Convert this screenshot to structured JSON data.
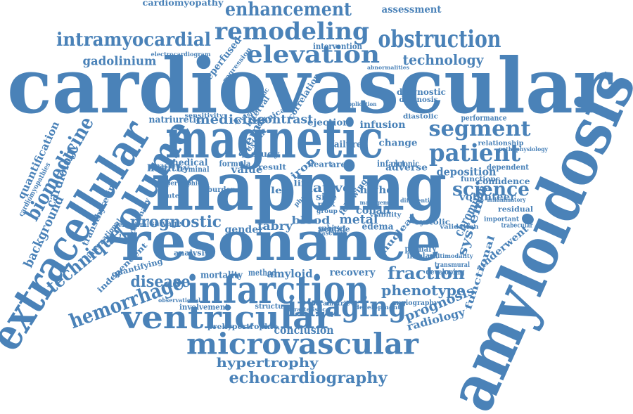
{
  "colors": {
    "word": "#4a82b8",
    "background": "#ffffff"
  },
  "words": [
    {
      "text": "cardiovascular"
    },
    {
      "text": "mapping"
    },
    {
      "text": "resonance"
    },
    {
      "text": "magnetic"
    },
    {
      "text": "amyloidosis"
    },
    {
      "text": "extracellular"
    },
    {
      "text": "infarction"
    },
    {
      "text": "ventricular"
    },
    {
      "text": "microvascular"
    },
    {
      "text": "imaging"
    },
    {
      "text": "volume"
    },
    {
      "text": "remodeling"
    },
    {
      "text": "obstruction"
    },
    {
      "text": "elevation"
    },
    {
      "text": "patient"
    },
    {
      "text": "segment"
    },
    {
      "text": "enhancement"
    },
    {
      "text": "intramyocardial"
    },
    {
      "text": "biomedicine"
    },
    {
      "text": "hemorrhage"
    },
    {
      "text": "technique"
    },
    {
      "text": "science"
    },
    {
      "text": "fraction"
    },
    {
      "text": "echocardiography"
    },
    {
      "text": "disease"
    },
    {
      "text": "prognostic"
    },
    {
      "text": "technology"
    },
    {
      "text": "gadolinium"
    },
    {
      "text": "phenotype"
    },
    {
      "text": "hypertrophy"
    },
    {
      "text": "prognosis"
    },
    {
      "text": "background"
    },
    {
      "text": "cardiology"
    },
    {
      "text": "quantification"
    },
    {
      "text": "chromium"
    },
    {
      "text": "radiology"
    },
    {
      "text": "medicine"
    },
    {
      "text": "contrast"
    },
    {
      "text": "deposition"
    },
    {
      "text": "system"
    },
    {
      "text": "conclusion"
    },
    {
      "text": "assessment"
    },
    {
      "text": "cardiomyopathy"
    },
    {
      "text": "reperfused"
    },
    {
      "text": "intervention"
    },
    {
      "text": "functional"
    },
    {
      "text": "stemi"
    },
    {
      "text": "native"
    },
    {
      "text": "metal"
    },
    {
      "text": "blood"
    },
    {
      "text": "fabry"
    },
    {
      "text": "amyloid"
    },
    {
      "text": "recovery"
    },
    {
      "text": "confidence"
    },
    {
      "text": "volunteer"
    },
    {
      "text": "cobalt"
    },
    {
      "text": "higher"
    },
    {
      "text": "adverse"
    },
    {
      "text": "infusion"
    },
    {
      "text": "ejection"
    },
    {
      "text": "natriuretic"
    },
    {
      "text": "medical"
    },
    {
      "text": "healthy"
    },
    {
      "text": "value"
    },
    {
      "text": "gender"
    },
    {
      "text": "edema"
    },
    {
      "text": "nuclear"
    },
    {
      "text": "underwent"
    },
    {
      "text": "diagnostic"
    },
    {
      "text": "diagnosis"
    },
    {
      "text": "transthyretin"
    },
    {
      "text": "independent"
    },
    {
      "text": "angiography"
    },
    {
      "text": "mortality"
    },
    {
      "text": "method"
    },
    {
      "text": "involvement"
    },
    {
      "text": "structural"
    },
    {
      "text": "development"
    },
    {
      "text": "prehypertrophic"
    },
    {
      "text": "analysis"
    },
    {
      "text": "regression"
    },
    {
      "text": "change"
    },
    {
      "text": "infarct"
    },
    {
      "text": "chronic"
    },
    {
      "text": "study"
    },
    {
      "text": "failure"
    },
    {
      "text": "correlation"
    },
    {
      "text": "primary"
    },
    {
      "text": "implant"
    },
    {
      "text": "developing"
    },
    {
      "text": "performance"
    },
    {
      "text": "dependent"
    },
    {
      "text": "function"
    },
    {
      "text": "systolic"
    },
    {
      "text": "subject"
    },
    {
      "text": "salvage"
    },
    {
      "text": "measure"
    },
    {
      "text": "terminal"
    },
    {
      "text": "formula"
    },
    {
      "text": "peptide"
    },
    {
      "text": "area"
    },
    {
      "text": "size"
    },
    {
      "text": "heart"
    },
    {
      "text": "result"
    },
    {
      "text": "iron"
    },
    {
      "text": "left"
    },
    {
      "text": "life"
    },
    {
      "text": "burden"
    },
    {
      "text": "interval"
    },
    {
      "text": "clinical"
    },
    {
      "text": "cardiomyopathies"
    },
    {
      "text": "international"
    },
    {
      "text": "coronary"
    },
    {
      "text": "peripheral"
    },
    {
      "text": "quantifying"
    },
    {
      "text": "residual"
    },
    {
      "text": "validation"
    },
    {
      "text": "relationship"
    },
    {
      "text": "pathophysiology"
    },
    {
      "text": "transmural"
    },
    {
      "text": "parametric"
    },
    {
      "text": "characteristic"
    },
    {
      "text": "electrocardiogram"
    },
    {
      "text": "sensitivity"
    },
    {
      "text": "hypertrophic"
    },
    {
      "text": "important"
    },
    {
      "text": "inflammatory"
    },
    {
      "text": "trabecular"
    },
    {
      "text": "acute"
    },
    {
      "text": "systemic"
    },
    {
      "text": "vascular"
    },
    {
      "text": "invasive"
    },
    {
      "text": "abnormalities"
    },
    {
      "text": "observational"
    },
    {
      "text": "multimodality"
    },
    {
      "text": "differential"
    },
    {
      "text": "application"
    },
    {
      "text": "following"
    },
    {
      "text": "viability"
    },
    {
      "text": "attr"
    },
    {
      "text": "risk"
    },
    {
      "text": "group"
    },
    {
      "text": "phase"
    },
    {
      "text": "diastolic"
    },
    {
      "text": "management"
    },
    {
      "text": "extent"
    }
  ]
}
